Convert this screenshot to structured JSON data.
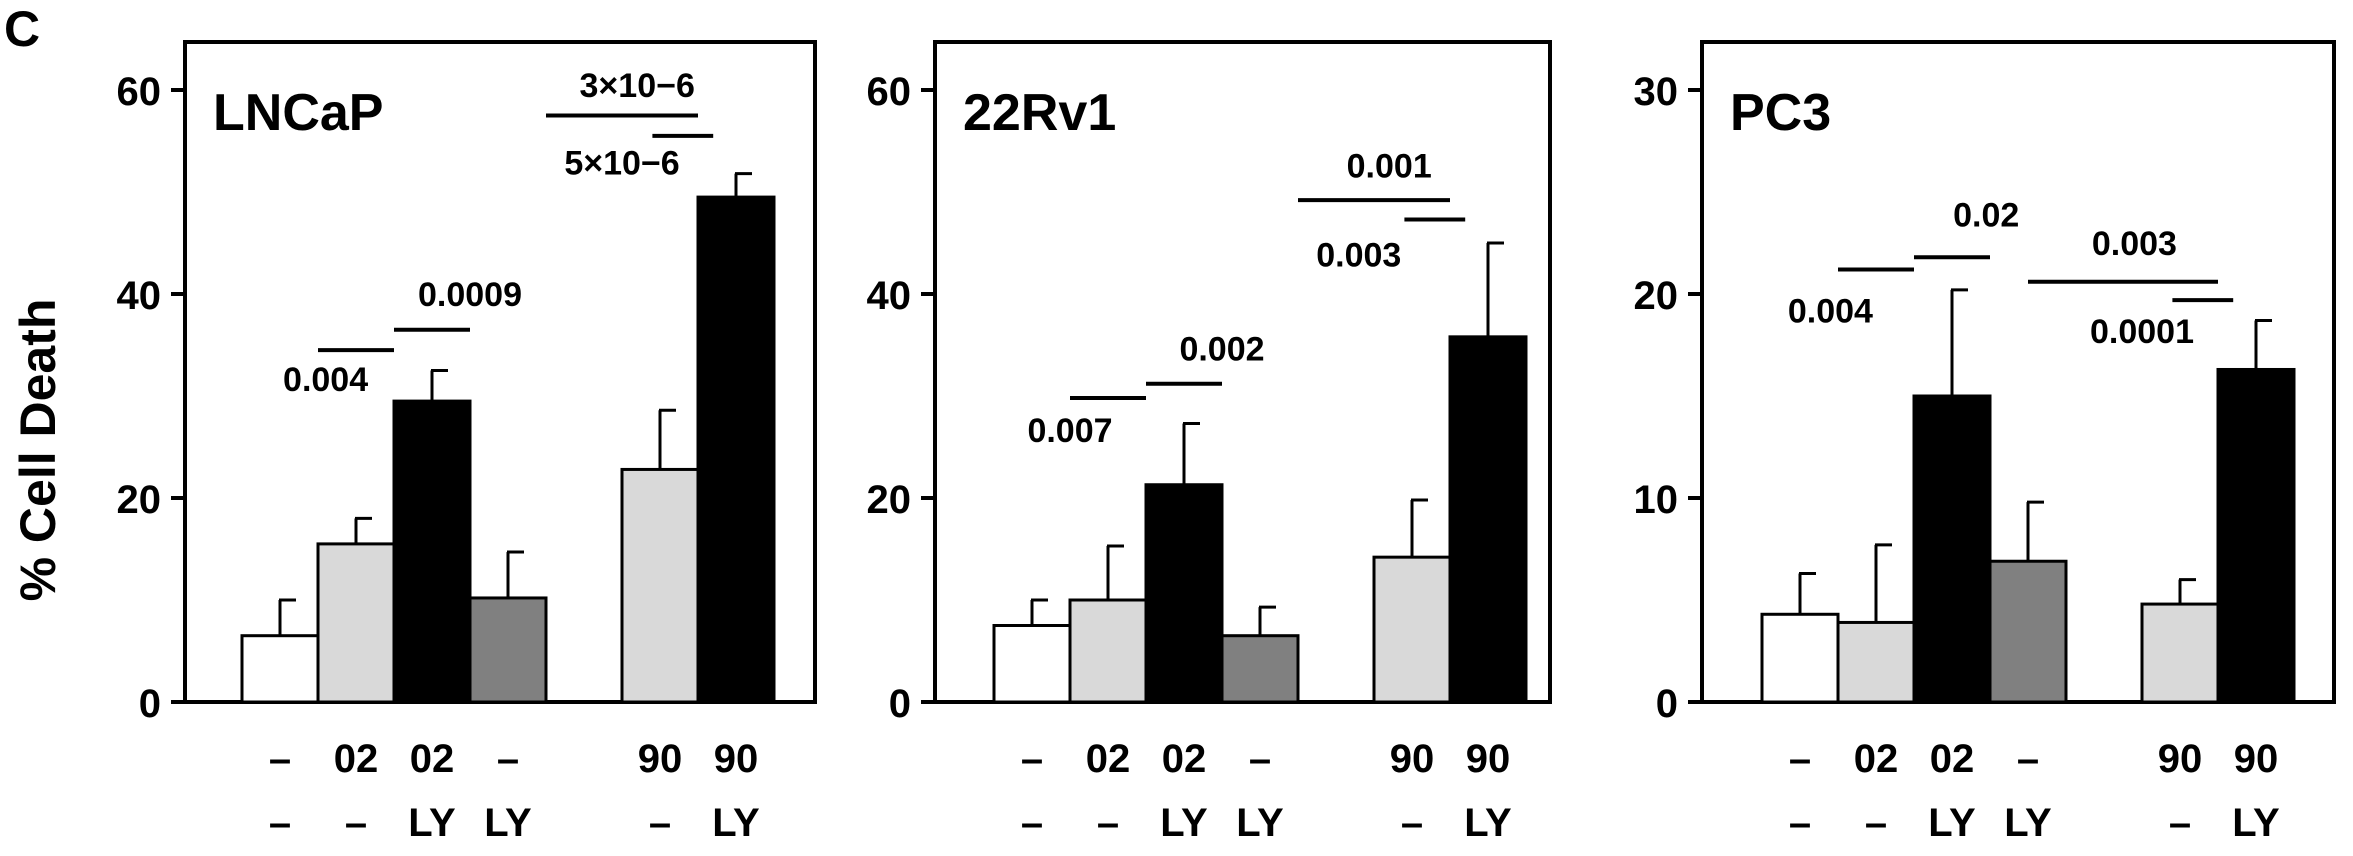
{
  "panel_label": "C",
  "ylabel": "% Cell Death",
  "colors": {
    "white": "#ffffff",
    "light": "#d9d9d9",
    "black": "#000000",
    "gray": "#808080"
  },
  "chart_data": [
    {
      "type": "bar",
      "title": "LNCaP",
      "ylabel": "% Cell Death",
      "ylim": [
        0,
        60
      ],
      "yticks": [
        0,
        20,
        40,
        60
      ],
      "groups": [
        0,
        1,
        2,
        3,
        5,
        6
      ],
      "row1": [
        "–",
        "02",
        "02",
        "–",
        "90",
        "90"
      ],
      "row2": [
        "–",
        "–",
        "LY",
        "LY",
        "–",
        "LY"
      ],
      "fills": [
        "white",
        "light",
        "black",
        "gray",
        "light",
        "black"
      ],
      "values": [
        6.5,
        15.5,
        29.5,
        10.2,
        22.8,
        49.5
      ],
      "errors": [
        3.5,
        2.5,
        3.0,
        4.5,
        5.8,
        2.3
      ],
      "comparisons": [
        {
          "from": 1,
          "to": 2,
          "ybar": 34.5,
          "label": "0.004",
          "label_pos": "below-left",
          "label_x": 1.1,
          "label_y": 30.5
        },
        {
          "from": 2,
          "to": 3,
          "ybar": 36.5,
          "label": "0.0009",
          "label_pos": "above",
          "label_x": 3.0,
          "label_y": 38.8
        },
        {
          "from": 4,
          "to": 6,
          "ybar": 57.5,
          "label": "3×10−6",
          "label_pos": "above",
          "label_x": 5.2,
          "label_y": 59.3
        },
        {
          "from": 5.4,
          "to": 6.2,
          "ybar": 55.5,
          "label": "5×10−6",
          "label_pos": "below-left",
          "label_x": 5.0,
          "label_y": 51.7
        }
      ]
    },
    {
      "type": "bar",
      "title": "22Rv1",
      "ylim": [
        0,
        60
      ],
      "yticks": [
        0,
        20,
        40,
        60
      ],
      "groups": [
        0,
        1,
        2,
        3,
        5,
        6
      ],
      "row1": [
        "–",
        "02",
        "02",
        "–",
        "90",
        "90"
      ],
      "row2": [
        "–",
        "–",
        "LY",
        "LY",
        "–",
        "LY"
      ],
      "fills": [
        "white",
        "light",
        "black",
        "gray",
        "light",
        "black"
      ],
      "values": [
        7.5,
        10.0,
        21.3,
        6.5,
        14.2,
        35.8
      ],
      "errors": [
        2.5,
        5.3,
        6.0,
        2.8,
        5.6,
        9.2
      ],
      "comparisons": [
        {
          "from": 1,
          "to": 2,
          "ybar": 29.8,
          "label": "0.007",
          "label_pos": "below-left",
          "label_x": 1.0,
          "label_y": 25.5
        },
        {
          "from": 2,
          "to": 3,
          "ybar": 31.2,
          "label": "0.002",
          "label_pos": "above",
          "label_x": 3.0,
          "label_y": 33.5
        },
        {
          "from": 4,
          "to": 6,
          "ybar": 49.2,
          "label": "0.001",
          "label_pos": "above",
          "label_x": 5.2,
          "label_y": 51.4
        },
        {
          "from": 5.4,
          "to": 6.2,
          "ybar": 47.3,
          "label": "0.003",
          "label_pos": "below-left",
          "label_x": 4.8,
          "label_y": 42.7
        }
      ]
    },
    {
      "type": "bar",
      "title": "PC3",
      "ylim": [
        0,
        30
      ],
      "yticks": [
        0,
        10,
        20,
        30
      ],
      "groups": [
        0,
        1,
        2,
        3,
        5,
        6
      ],
      "row1": [
        "–",
        "02",
        "02",
        "–",
        "90",
        "90"
      ],
      "row2": [
        "–",
        "–",
        "LY",
        "LY",
        "–",
        "LY"
      ],
      "fills": [
        "white",
        "light",
        "black",
        "gray",
        "light",
        "black"
      ],
      "values": [
        4.3,
        3.9,
        15.0,
        6.9,
        4.8,
        16.3
      ],
      "errors": [
        2.0,
        3.8,
        5.2,
        2.9,
        1.2,
        2.4
      ],
      "comparisons": [
        {
          "from": 1,
          "to": 2,
          "ybar": 21.2,
          "label": "0.004",
          "label_pos": "below-left",
          "label_x": 0.9,
          "label_y": 18.6
        },
        {
          "from": 2,
          "to": 3,
          "ybar": 21.8,
          "label": "0.02",
          "label_pos": "above",
          "label_x": 2.95,
          "label_y": 23.3
        },
        {
          "from": 3.5,
          "to": 6,
          "ybar": 20.6,
          "label": "0.003",
          "label_pos": "above",
          "label_x": 4.9,
          "label_y": 21.9
        },
        {
          "from": 5.4,
          "to": 6.2,
          "ybar": 19.7,
          "label": "0.0001",
          "label_pos": "below-left",
          "label_x": 5.0,
          "label_y": 17.6
        }
      ]
    }
  ]
}
